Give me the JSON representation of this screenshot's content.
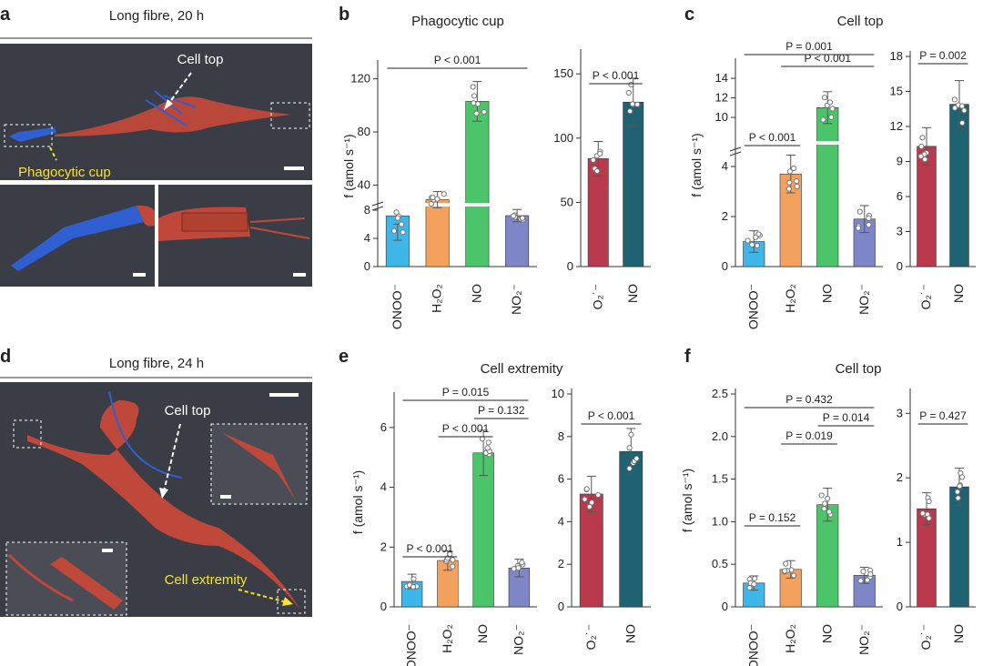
{
  "colors": {
    "ONOO": "#3fb6e8",
    "H2O2": "#f4a15d",
    "NO_green": "#4cc46a",
    "NO2": "#7f86c8",
    "O2": "#b83a4c",
    "NO_teal": "#1f6372",
    "sem_bg": "#3a3d45",
    "cell": "#c0483a",
    "fibre": "#2f5fd0",
    "yellow": "#f5e42a"
  },
  "images": {
    "a": {
      "label": "a",
      "title": "Long fibre, 20 h",
      "cell_top": "Cell top",
      "phagocytic_cup": "Phagocytic cup"
    },
    "d": {
      "label": "d",
      "title": "Long fibre, 24 h",
      "cell_top": "Cell top",
      "cell_extremity": "Cell extremity"
    }
  },
  "chart_data": [
    {
      "panel": "b",
      "type": "bar",
      "title": "Phagocytic cup",
      "ylabel": "f (amol s⁻¹)",
      "ylim": [
        0,
        130
      ],
      "broken_axis": true,
      "yticks": [
        "0",
        "4",
        "8",
        "40",
        "80",
        "120"
      ],
      "categories": [
        "ONOO⁻",
        "H₂O₂",
        "NO",
        "NO₂⁻"
      ],
      "values": [
        7.2,
        29,
        103,
        17
      ],
      "significance": [
        {
          "from": "ONOO⁻",
          "to": "NO₂⁻",
          "label": "P < 0.001"
        }
      ]
    },
    {
      "panel": "b2",
      "type": "bar",
      "title": "",
      "ylabel": "",
      "ylim": [
        0,
        165
      ],
      "yticks": [
        "0",
        "50",
        "100",
        "150"
      ],
      "categories": [
        "O₂˙⁻",
        "NO"
      ],
      "values": [
        84,
        128
      ],
      "significance": [
        {
          "from": "O₂˙⁻",
          "to": "NO",
          "label": "P < 0.001"
        }
      ]
    },
    {
      "panel": "c",
      "type": "bar",
      "title": "Cell top",
      "ylabel": "f (amol s⁻¹)",
      "ylim": [
        0,
        15.5
      ],
      "broken_axis": true,
      "yticks": [
        "0",
        "2",
        "4",
        "10",
        "12",
        "14"
      ],
      "categories": [
        "ONOO⁻",
        "H₂O₂",
        "NO",
        "NO₂⁻"
      ],
      "values": [
        1.0,
        3.7,
        11.0,
        1.9
      ],
      "significance": [
        {
          "from": "ONOO⁻",
          "to": "H₂O₂",
          "label": "P < 0.001"
        },
        {
          "from": "H₂O₂",
          "to": "NO₂⁻",
          "label": "P < 0.001"
        },
        {
          "from": "ONOO⁻",
          "to": "NO₂⁻",
          "label": "P = 0.001"
        }
      ]
    },
    {
      "panel": "c2",
      "type": "bar",
      "title": "",
      "ylabel": "",
      "ylim": [
        0,
        18
      ],
      "yticks": [
        "0",
        "3",
        "6",
        "9",
        "12",
        "15",
        "18"
      ],
      "categories": [
        "O₂˙⁻",
        "NO"
      ],
      "values": [
        10.3,
        13.9
      ],
      "significance": [
        {
          "from": "O₂˙⁻",
          "to": "NO",
          "label": "P = 0.002"
        }
      ]
    },
    {
      "panel": "e",
      "type": "bar",
      "title": "Cell extremity",
      "ylabel": "f (amol s⁻¹)",
      "ylim": [
        0,
        7
      ],
      "yticks": [
        "0",
        "2",
        "4",
        "6"
      ],
      "categories": [
        "ONOO⁻",
        "H₂O₂",
        "NO",
        "NO₂⁻"
      ],
      "values": [
        0.85,
        1.55,
        5.15,
        1.3
      ],
      "significance": [
        {
          "from": "H₂O₂",
          "to": "NO",
          "label": "P < 0.001"
        },
        {
          "from": "NO",
          "to": "NO₂⁻",
          "label": "P = 0.132"
        },
        {
          "from": "ONOO⁻",
          "to": "NO₂⁻",
          "label": "P = 0.015"
        },
        {
          "from": "ONOO⁻",
          "to": "H₂O₂",
          "label": "P < 0.001"
        }
      ]
    },
    {
      "panel": "e2",
      "type": "bar",
      "title": "",
      "ylabel": "",
      "ylim": [
        0,
        10
      ],
      "yticks": [
        "0",
        "2",
        "4",
        "6",
        "8",
        "10"
      ],
      "categories": [
        "O₂˙⁻",
        "NO"
      ],
      "values": [
        5.3,
        7.3
      ],
      "significance": [
        {
          "from": "O₂˙⁻",
          "to": "NO",
          "label": "P < 0.001"
        }
      ]
    },
    {
      "panel": "f",
      "type": "bar",
      "title": "Cell top",
      "ylabel": "f (amol s⁻¹)",
      "ylim": [
        0,
        2.5
      ],
      "yticks": [
        "0",
        "0.5",
        "1.0",
        "1.5",
        "2.0",
        "2.5"
      ],
      "categories": [
        "ONOO⁻",
        "H₂O₂",
        "NO",
        "NO₂⁻"
      ],
      "values": [
        0.28,
        0.44,
        1.2,
        0.37
      ],
      "significance": [
        {
          "from": "H₂O₂",
          "to": "NO",
          "label": "P = 0.019"
        },
        {
          "from": "NO",
          "to": "NO₂⁻",
          "label": "P = 0.014"
        },
        {
          "from": "ONOO⁻",
          "to": "NO₂⁻",
          "label": "P = 0.432"
        },
        {
          "from": "ONOO⁻",
          "to": "H₂O₂",
          "label": "P = 0.152"
        }
      ]
    },
    {
      "panel": "f2",
      "type": "bar",
      "title": "",
      "ylabel": "",
      "ylim": [
        0,
        3.3
      ],
      "yticks": [
        "0",
        "1",
        "2",
        "3"
      ],
      "categories": [
        "O₂˙⁻",
        "NO"
      ],
      "values": [
        1.52,
        1.86
      ],
      "significance": [
        {
          "from": "O₂˙⁻",
          "to": "NO",
          "label": "P = 0.427"
        }
      ]
    }
  ],
  "panel_labels": {
    "b": "b",
    "c": "c",
    "e": "e",
    "f": "f"
  }
}
